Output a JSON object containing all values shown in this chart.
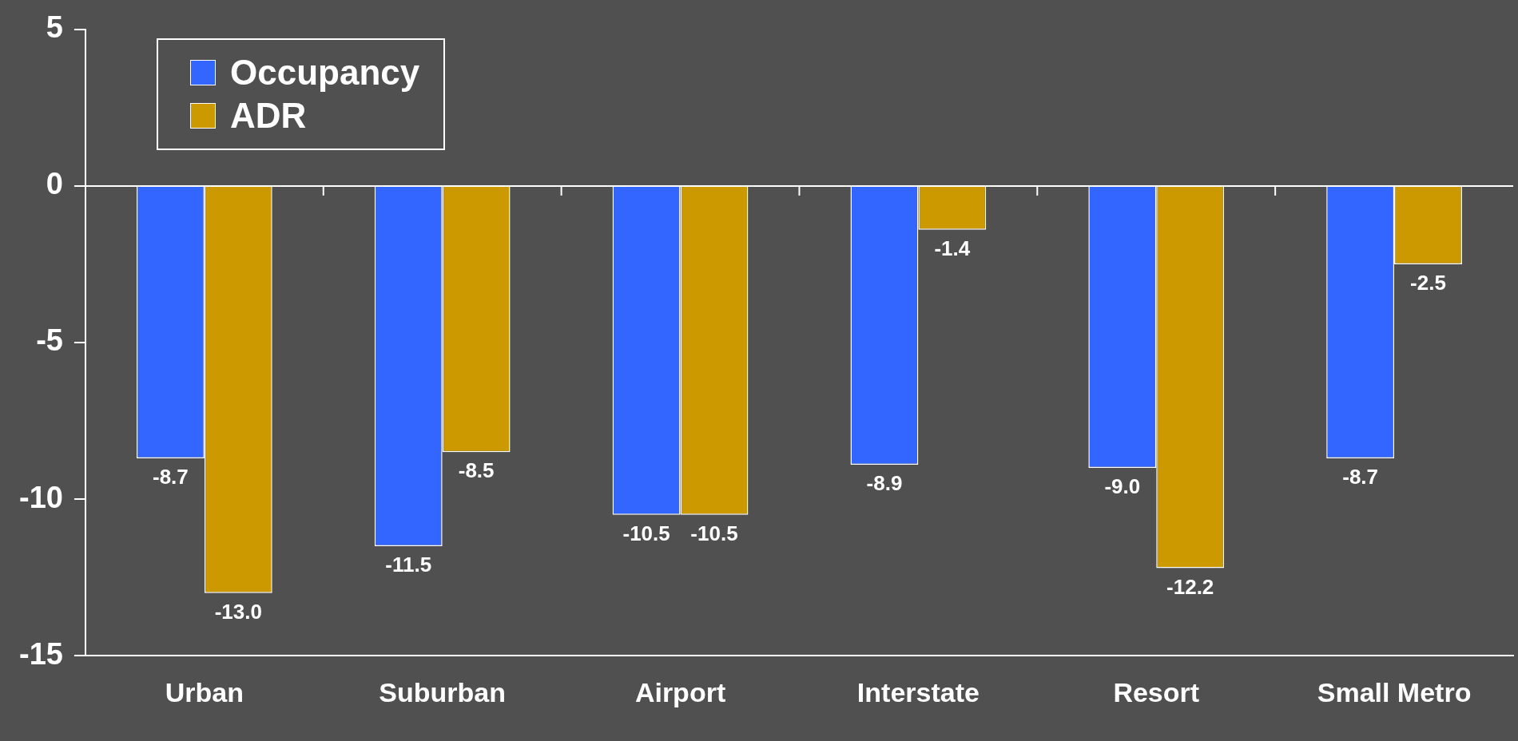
{
  "chart_data": {
    "type": "bar",
    "categories": [
      "Urban",
      "Suburban",
      "Airport",
      "Interstate",
      "Resort",
      "Small Metro"
    ],
    "series": [
      {
        "name": "Occupancy",
        "color": "#3366ff",
        "values": [
          -8.7,
          -11.5,
          -10.5,
          -8.9,
          -9.0,
          -8.7
        ],
        "value_labels": [
          "-8.7",
          "-11.5",
          "-10.5",
          "-8.9",
          "-9.0",
          "-8.7"
        ]
      },
      {
        "name": "ADR",
        "color": "#cc9900",
        "values": [
          -13.0,
          -8.5,
          -10.5,
          -1.4,
          -12.2,
          -2.5
        ],
        "value_labels": [
          "-13.0",
          "-8.5",
          "-10.5",
          "-1.4",
          "-12.2",
          "-2.5"
        ]
      }
    ],
    "ylim": [
      -15,
      5
    ],
    "yticks": [
      -15,
      -10,
      -5,
      0,
      5
    ],
    "ref_lines": [
      {
        "axis": "y",
        "value": 0,
        "color": "#ffffff"
      }
    ],
    "legend": "top left"
  }
}
